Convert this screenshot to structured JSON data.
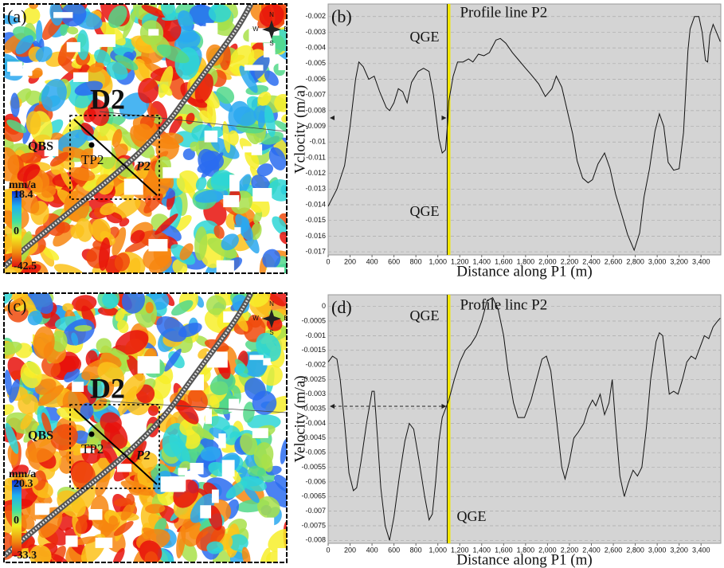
{
  "chart_data": [
    {
      "type": "line",
      "panel": "(b)",
      "title": "Profile line P2",
      "annotations": [
        "QGE",
        "QGE"
      ],
      "xlabel": "Distance along P1 (m)",
      "ylabel": "Vclocity (m/a)",
      "color": "#111111",
      "grid": true,
      "vline": {
        "x": 1100,
        "color": "#f2e600"
      },
      "xlim": [
        0,
        3580
      ],
      "ylim": [
        -0.0172,
        -0.0012
      ],
      "xticks": [
        0,
        200,
        400,
        600,
        800,
        {
          "value": 1000,
          "label": "1,000"
        },
        {
          "value": 1200,
          "label": "1,200"
        },
        {
          "value": 1400,
          "label": "1,400"
        },
        {
          "value": 1600,
          "label": "1,600"
        },
        {
          "value": 1800,
          "label": "1,800"
        },
        {
          "value": 2000,
          "label": "2,000"
        },
        {
          "value": 2200,
          "label": "2,200"
        },
        {
          "value": 2400,
          "label": "2,400"
        },
        {
          "value": 2600,
          "label": "2,600"
        },
        {
          "value": 2800,
          "label": "2,800"
        },
        {
          "value": 3000,
          "label": "3,000"
        },
        {
          "value": 3200,
          "label": "3,200"
        },
        {
          "value": 3400,
          "label": "3,400"
        }
      ],
      "yticks": [
        -0.002,
        -0.003,
        -0.004,
        -0.005,
        -0.006,
        -0.007,
        -0.008,
        -0.009,
        -0.01,
        -0.011,
        -0.012,
        -0.013,
        -0.014,
        -0.015,
        -0.016,
        -0.017
      ],
      "x": [
        0,
        80,
        150,
        200,
        250,
        280,
        320,
        370,
        420,
        470,
        530,
        560,
        600,
        640,
        680,
        720,
        760,
        820,
        870,
        920,
        960,
        1010,
        1040,
        1070,
        1090,
        1100,
        1140,
        1180,
        1230,
        1280,
        1320,
        1370,
        1420,
        1470,
        1530,
        1570,
        1620,
        1680,
        1740,
        1800,
        1850,
        1920,
        1980,
        2040,
        2080,
        2130,
        2180,
        2230,
        2270,
        2320,
        2370,
        2410,
        2460,
        2520,
        2570,
        2620,
        2680,
        2730,
        2790,
        2840,
        2880,
        2930,
        2980,
        3020,
        3060,
        3100,
        3150,
        3200,
        3240,
        3280,
        3300,
        3340,
        3380,
        3410,
        3440,
        3460,
        3480,
        3510,
        3540,
        3575
      ],
      "values": [
        -0.0141,
        -0.013,
        -0.0115,
        -0.009,
        -0.006,
        -0.0049,
        -0.0052,
        -0.006,
        -0.0058,
        -0.0068,
        -0.0078,
        -0.008,
        -0.0075,
        -0.0066,
        -0.0068,
        -0.0075,
        -0.0062,
        -0.0055,
        -0.0053,
        -0.0055,
        -0.007,
        -0.0098,
        -0.0107,
        -0.0105,
        -0.0087,
        -0.0074,
        -0.0058,
        -0.0049,
        -0.0049,
        -0.0047,
        -0.0049,
        -0.0044,
        -0.0045,
        -0.0043,
        -0.0035,
        -0.0034,
        -0.0037,
        -0.0043,
        -0.0048,
        -0.0053,
        -0.0057,
        -0.0063,
        -0.0071,
        -0.0066,
        -0.0058,
        -0.0065,
        -0.008,
        -0.0095,
        -0.0112,
        -0.0123,
        -0.0126,
        -0.0124,
        -0.0114,
        -0.0107,
        -0.0117,
        -0.0133,
        -0.0147,
        -0.0159,
        -0.0169,
        -0.0158,
        -0.0135,
        -0.0117,
        -0.0093,
        -0.0082,
        -0.009,
        -0.0113,
        -0.0118,
        -0.0117,
        -0.0094,
        -0.0042,
        -0.0028,
        -0.002,
        -0.002,
        -0.003,
        -0.0048,
        -0.0049,
        -0.0032,
        -0.0025,
        -0.003,
        -0.0036
      ]
    },
    {
      "type": "line",
      "panel": "(d)",
      "title": "Profile linc P2",
      "annotations": [
        "QGE",
        "QGE"
      ],
      "xlabel": "Distance along P1 (m)",
      "ylabel": "Velocity (m/a)",
      "color": "#111111",
      "grid": true,
      "vline": {
        "x": 1100,
        "color": "#f2e600"
      },
      "xlim": [
        0,
        3580
      ],
      "ylim": [
        -0.0081,
        0.0004
      ],
      "xticks": [
        0,
        200,
        400,
        600,
        800,
        {
          "value": 1000,
          "label": "1,000"
        },
        {
          "value": 1200,
          "label": "1,200"
        },
        {
          "value": 1400,
          "label": "1,400"
        },
        {
          "value": 1600,
          "label": "1,600"
        },
        {
          "value": 1800,
          "label": "1,800"
        },
        {
          "value": 2000,
          "label": "2,000"
        },
        {
          "value": 2200,
          "label": "2,200"
        },
        {
          "value": 2400,
          "label": "2,400"
        },
        {
          "value": 2600,
          "label": "2,600"
        },
        {
          "value": 2800,
          "label": "2,800"
        },
        {
          "value": 3000,
          "label": "3,000"
        },
        {
          "value": 3200,
          "label": "3,200"
        },
        {
          "value": 3400,
          "label": "3,400"
        }
      ],
      "yticks": [
        0,
        -0.0005,
        -0.001,
        -0.0015,
        -0.002,
        -0.0025,
        -0.003,
        -0.0035,
        -0.004,
        -0.0045,
        -0.005,
        -0.0055,
        -0.006,
        -0.0065,
        -0.007,
        -0.0075,
        -0.008
      ],
      "x": [
        0,
        40,
        80,
        110,
        150,
        190,
        230,
        260,
        300,
        350,
        400,
        420,
        450,
        480,
        520,
        560,
        600,
        650,
        700,
        740,
        780,
        830,
        880,
        920,
        950,
        980,
        1010,
        1040,
        1070,
        1100,
        1150,
        1200,
        1250,
        1300,
        1350,
        1400,
        1450,
        1500,
        1550,
        1600,
        1640,
        1690,
        1730,
        1790,
        1850,
        1900,
        1950,
        1990,
        2030,
        2080,
        2130,
        2160,
        2200,
        2240,
        2280,
        2330,
        2370,
        2410,
        2440,
        2480,
        2520,
        2560,
        2590,
        2620,
        2660,
        2700,
        2740,
        2780,
        2820,
        2860,
        2900,
        2940,
        2990,
        3020,
        3050,
        3080,
        3110,
        3150,
        3190,
        3230,
        3270,
        3310,
        3350,
        3390,
        3430,
        3470,
        3510,
        3550,
        3575
      ],
      "values": [
        -0.0019,
        -0.0017,
        -0.0018,
        -0.0025,
        -0.004,
        -0.0057,
        -0.0063,
        -0.0062,
        -0.0053,
        -0.004,
        -0.0029,
        -0.0029,
        -0.0045,
        -0.0062,
        -0.0075,
        -0.008,
        -0.0072,
        -0.0058,
        -0.0046,
        -0.004,
        -0.0042,
        -0.0053,
        -0.0065,
        -0.0073,
        -0.0071,
        -0.006,
        -0.0046,
        -0.0038,
        -0.0035,
        -0.0032,
        -0.0025,
        -0.0019,
        -0.0015,
        -0.0013,
        -0.001,
        -0.0005,
        0.0002,
        0.0003,
        -0.0001,
        -0.001,
        -0.0022,
        -0.0033,
        -0.0038,
        -0.0038,
        -0.0032,
        -0.0025,
        -0.0018,
        -0.0017,
        -0.0022,
        -0.0038,
        -0.0055,
        -0.0059,
        -0.0053,
        -0.0045,
        -0.0043,
        -0.004,
        -0.0035,
        -0.0032,
        -0.0034,
        -0.003,
        -0.0037,
        -0.0033,
        -0.0025,
        -0.004,
        -0.0058,
        -0.0065,
        -0.006,
        -0.0056,
        -0.0058,
        -0.0055,
        -0.0042,
        -0.0025,
        -0.0012,
        -0.0009,
        -0.001,
        -0.002,
        -0.003,
        -0.0029,
        -0.003,
        -0.0025,
        -0.0019,
        -0.0017,
        -0.0018,
        -0.0014,
        -0.001,
        -0.0011,
        -0.0007,
        -0.0005,
        -0.0004
      ]
    }
  ],
  "maps": [
    {
      "panel": "(a)",
      "site": "D2",
      "station": "QBS",
      "point": "TP2",
      "profile": "P2",
      "unit": "mm/a",
      "scale": [
        "18.4",
        "0",
        "-42.5"
      ],
      "compass": [
        "N",
        "W",
        "E",
        "S"
      ]
    },
    {
      "panel": "(c)",
      "site": "D2",
      "station": "QBS",
      "point": "TP2",
      "profile": "P2",
      "unit": "mm/a",
      "scale": [
        "20.3",
        "0",
        "-33.3"
      ],
      "compass": [
        "N",
        "W",
        "E",
        "S"
      ]
    }
  ]
}
